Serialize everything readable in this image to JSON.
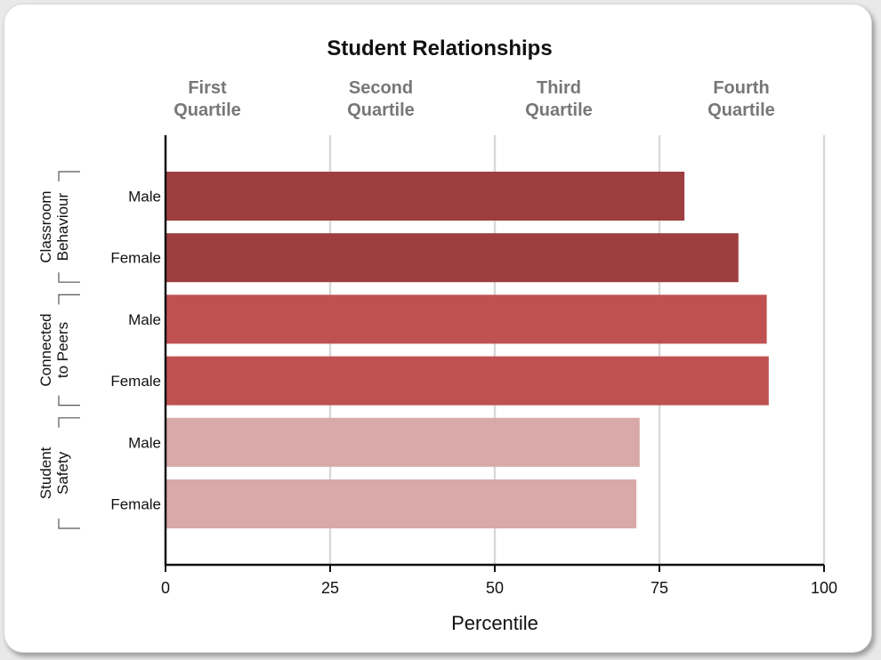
{
  "chart_data": {
    "type": "bar",
    "orientation": "horizontal",
    "title": "Student Relationships",
    "xlabel": "Percentile",
    "xlim": [
      0,
      100
    ],
    "xticks": [
      "0",
      "25",
      "50",
      "75",
      "100"
    ],
    "grid": true,
    "quartile_labels": [
      [
        "First",
        "Quartile"
      ],
      [
        "Second",
        "Quartile"
      ],
      [
        "Third",
        "Quartile"
      ],
      [
        "Fourth",
        "Quartile"
      ]
    ],
    "groups": [
      {
        "label": [
          "Classroom",
          "Behaviour"
        ],
        "color": "#9e3f3f",
        "bars": [
          {
            "category": "Male",
            "value": 78.8
          },
          {
            "category": "Female",
            "value": 87
          }
        ]
      },
      {
        "label": [
          "Connected",
          "to Peers"
        ],
        "color": "#c05151",
        "bars": [
          {
            "category": "Male",
            "value": 91.3
          },
          {
            "category": "Female",
            "value": 91.6
          }
        ]
      },
      {
        "label": [
          "Student",
          "Safety"
        ],
        "color": "#d9a8a8",
        "bars": [
          {
            "category": "Male",
            "value": 72
          },
          {
            "category": "Female",
            "value": 71.5
          }
        ]
      }
    ]
  }
}
